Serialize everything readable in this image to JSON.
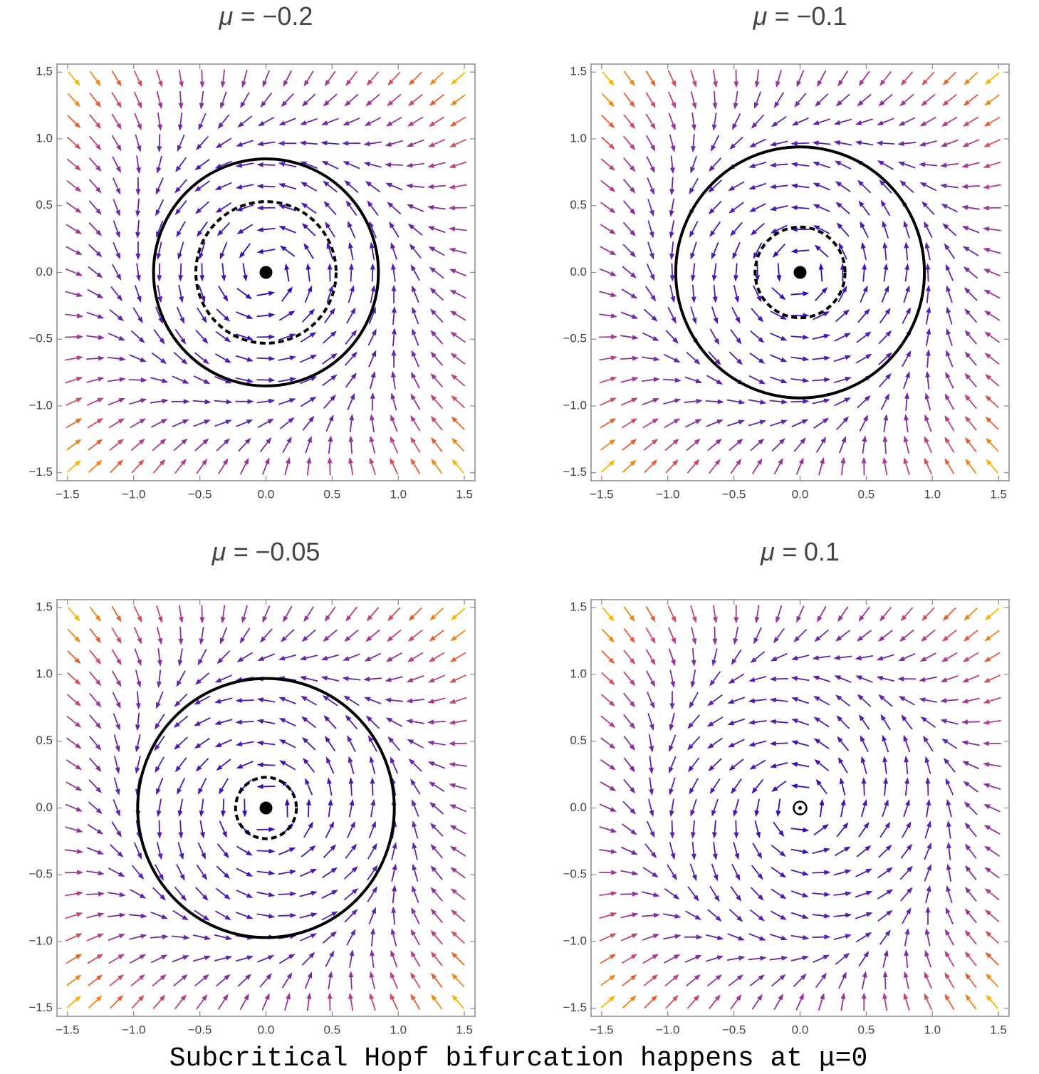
{
  "caption": "Subcritical Hopf bifurcation happens at μ=0",
  "chart_data": [
    {
      "type": "vector_field",
      "param_label": "μ =",
      "mu": {
        "value": -0.2,
        "label": "−0.2"
      },
      "stable_cycle": 0.85,
      "unstable_cycle": 0.53,
      "origin": "stable",
      "xlim": [
        -1.58,
        1.58
      ],
      "ylim": [
        -1.56,
        1.56
      ],
      "xticks": [
        {
          "value": -1.5,
          "label": "−1.5"
        },
        {
          "value": -1,
          "label": "−1.0"
        },
        {
          "value": -0.5,
          "label": "−0.5"
        },
        {
          "value": 0,
          "label": "0.0"
        },
        {
          "value": 0.5,
          "label": "0.5"
        },
        {
          "value": 1,
          "label": "1.0"
        },
        {
          "value": 1.5,
          "label": "1.5"
        }
      ],
      "yticks": [
        {
          "value": -1.5,
          "label": "−1.5"
        },
        {
          "value": -1,
          "label": "−1.0"
        },
        {
          "value": -0.5,
          "label": "−0.5"
        },
        {
          "value": 0,
          "label": "0.0"
        },
        {
          "value": 0.5,
          "label": "0.5"
        },
        {
          "value": 1,
          "label": "1.0"
        },
        {
          "value": 1.5,
          "label": "1.5"
        }
      ],
      "colors": [
        "#2200b4",
        "#6b2ba4",
        "#b8408a",
        "#e8632a",
        "#f7b500"
      ]
    },
    {
      "type": "vector_field",
      "param_label": "μ =",
      "mu": {
        "value": -0.1,
        "label": "−0.1"
      },
      "stable_cycle": 0.94,
      "unstable_cycle": 0.34,
      "origin": "stable",
      "xlim": [
        -1.58,
        1.58
      ],
      "ylim": [
        -1.56,
        1.56
      ],
      "xticks": [
        {
          "value": -1.5,
          "label": "−1.5"
        },
        {
          "value": -1,
          "label": "−1.0"
        },
        {
          "value": -0.5,
          "label": "−0.5"
        },
        {
          "value": 0,
          "label": "0.0"
        },
        {
          "value": 0.5,
          "label": "0.5"
        },
        {
          "value": 1,
          "label": "1.0"
        },
        {
          "value": 1.5,
          "label": "1.5"
        }
      ],
      "yticks": [
        {
          "value": -1.5,
          "label": "−1.5"
        },
        {
          "value": -1,
          "label": "−1.0"
        },
        {
          "value": -0.5,
          "label": "−0.5"
        },
        {
          "value": 0,
          "label": "0.0"
        },
        {
          "value": 0.5,
          "label": "0.5"
        },
        {
          "value": 1,
          "label": "1.0"
        },
        {
          "value": 1.5,
          "label": "1.5"
        }
      ],
      "colors": [
        "#2200b4",
        "#6b2ba4",
        "#b8408a",
        "#e8632a",
        "#f7b500"
      ]
    },
    {
      "type": "vector_field",
      "param_label": "μ =",
      "mu": {
        "value": -0.05,
        "label": "−0.05"
      },
      "stable_cycle": 0.97,
      "unstable_cycle": 0.23,
      "origin": "stable",
      "xlim": [
        -1.58,
        1.58
      ],
      "ylim": [
        -1.56,
        1.56
      ],
      "xticks": [
        {
          "value": -1.5,
          "label": "−1.5"
        },
        {
          "value": -1,
          "label": "−1.0"
        },
        {
          "value": -0.5,
          "label": "−0.5"
        },
        {
          "value": 0,
          "label": "0.0"
        },
        {
          "value": 0.5,
          "label": "0.5"
        },
        {
          "value": 1,
          "label": "1.0"
        },
        {
          "value": 1.5,
          "label": "1.5"
        }
      ],
      "yticks": [
        {
          "value": -1.5,
          "label": "−1.5"
        },
        {
          "value": -1,
          "label": "−1.0"
        },
        {
          "value": -0.5,
          "label": "−0.5"
        },
        {
          "value": 0,
          "label": "0.0"
        },
        {
          "value": 0.5,
          "label": "0.5"
        },
        {
          "value": 1,
          "label": "1.0"
        },
        {
          "value": 1.5,
          "label": "1.5"
        }
      ],
      "colors": [
        "#2200b4",
        "#6b2ba4",
        "#b8408a",
        "#e8632a",
        "#f7b500"
      ]
    },
    {
      "type": "vector_field",
      "param_label": "μ =",
      "mu": {
        "value": 0.1,
        "label": "0.1"
      },
      "origin": "unstable",
      "xlim": [
        -1.58,
        1.58
      ],
      "ylim": [
        -1.56,
        1.56
      ],
      "xticks": [
        {
          "value": -1.5,
          "label": "−1.5"
        },
        {
          "value": -1,
          "label": "−1.0"
        },
        {
          "value": -0.5,
          "label": "−0.5"
        },
        {
          "value": 0,
          "label": "0.0"
        },
        {
          "value": 0.5,
          "label": "0.5"
        },
        {
          "value": 1,
          "label": "1.0"
        },
        {
          "value": 1.5,
          "label": "1.5"
        }
      ],
      "yticks": [
        {
          "value": -1.5,
          "label": "−1.5"
        },
        {
          "value": -1,
          "label": "−1.0"
        },
        {
          "value": -0.5,
          "label": "−0.5"
        },
        {
          "value": 0,
          "label": "0.0"
        },
        {
          "value": 0.5,
          "label": "0.5"
        },
        {
          "value": 1,
          "label": "1.0"
        },
        {
          "value": 1.5,
          "label": "1.5"
        }
      ],
      "colors": [
        "#2200b4",
        "#6b2ba4",
        "#b8408a",
        "#e8632a",
        "#f7b500"
      ]
    }
  ]
}
